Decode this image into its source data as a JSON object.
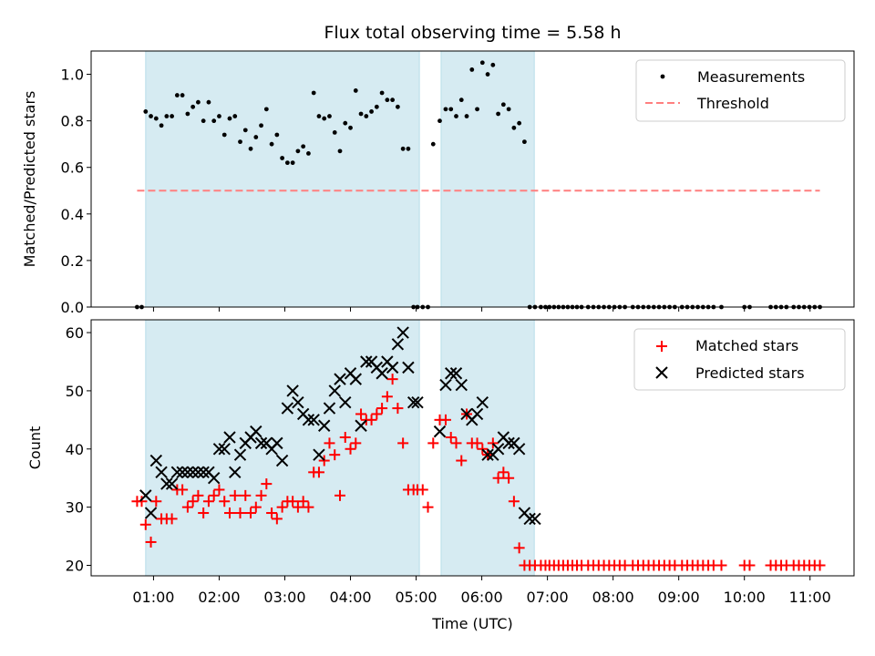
{
  "chart_data": [
    {
      "type": "scatter",
      "title": "Flux total observing time = 5.58 h",
      "xlabel": "",
      "ylabel": "Matched/Predicted stars",
      "xlim": [
        0.05,
        11.67
      ],
      "ylim": [
        0.0,
        1.1
      ],
      "yticks": [
        0.0,
        0.2,
        0.4,
        0.6,
        0.8,
        1.0
      ],
      "ytick_labels": [
        "0.0",
        "0.2",
        "0.4",
        "0.6",
        "0.8",
        "1.0"
      ],
      "shaded_ranges": [
        [
          0.88,
          5.05
        ],
        [
          5.38,
          6.8
        ]
      ],
      "threshold": {
        "name": "Threshold",
        "value": 0.5,
        "x_start": 0.75,
        "x_end": 11.15,
        "color": "#ff7f7f"
      },
      "legend": [
        "Measurements",
        "Threshold"
      ],
      "legend_position": "top-right",
      "series": [
        {
          "name": "Measurements",
          "color": "#000000",
          "x": [
            0.75,
            0.82,
            0.88,
            0.96,
            1.04,
            1.12,
            1.2,
            1.28,
            1.36,
            1.44,
            1.52,
            1.6,
            1.68,
            1.76,
            1.84,
            1.92,
            2.0,
            2.08,
            2.16,
            2.24,
            2.32,
            2.4,
            2.48,
            2.56,
            2.64,
            2.72,
            2.8,
            2.88,
            2.96,
            3.04,
            3.12,
            3.2,
            3.28,
            3.36,
            3.44,
            3.52,
            3.6,
            3.68,
            3.76,
            3.84,
            3.92,
            4.0,
            4.08,
            4.16,
            4.24,
            4.32,
            4.4,
            4.48,
            4.56,
            4.64,
            4.72,
            4.8,
            4.88,
            4.96,
            5.02,
            5.1,
            5.18,
            5.26,
            5.36,
            5.45,
            5.53,
            5.61,
            5.69,
            5.77,
            5.85,
            5.93,
            6.01,
            6.09,
            6.17,
            6.25,
            6.33,
            6.41,
            6.49,
            6.57,
            6.65,
            6.73,
            6.81,
            6.9,
            6.97,
            7.03,
            7.1,
            7.17,
            7.24,
            7.31,
            7.38,
            7.45,
            7.52,
            7.62,
            7.7,
            7.78,
            7.86,
            7.94,
            8.02,
            8.1,
            8.18,
            8.3,
            8.38,
            8.46,
            8.54,
            8.62,
            8.7,
            8.78,
            8.86,
            8.94,
            9.05,
            9.13,
            9.21,
            9.29,
            9.37,
            9.45,
            9.53,
            9.65,
            10.0,
            10.08,
            10.4,
            10.48,
            10.56,
            10.64,
            10.75,
            10.83,
            10.91,
            10.99,
            11.07,
            11.15
          ],
          "y": [
            0.0,
            0.0,
            0.84,
            0.82,
            0.81,
            0.78,
            0.82,
            0.82,
            0.91,
            0.91,
            0.83,
            0.86,
            0.88,
            0.8,
            0.88,
            0.8,
            0.82,
            0.74,
            0.81,
            0.82,
            0.71,
            0.76,
            0.68,
            0.73,
            0.78,
            0.85,
            0.7,
            0.74,
            0.64,
            0.62,
            0.62,
            0.67,
            0.69,
            0.66,
            0.92,
            0.82,
            0.81,
            0.82,
            0.75,
            0.67,
            0.79,
            0.77,
            0.93,
            0.83,
            0.82,
            0.84,
            0.86,
            0.92,
            0.89,
            0.89,
            0.86,
            0.68,
            0.68,
            0.0,
            0.0,
            0.0,
            0.0,
            0.7,
            0.8,
            0.85,
            0.85,
            0.82,
            0.89,
            0.82,
            1.02,
            0.85,
            1.05,
            1.0,
            1.04,
            0.83,
            0.87,
            0.85,
            0.77,
            0.79,
            0.71,
            0.0,
            0.0,
            0.0,
            0.0,
            0.0,
            0.0,
            0.0,
            0.0,
            0.0,
            0.0,
            0.0,
            0.0,
            0.0,
            0.0,
            0.0,
            0.0,
            0.0,
            0.0,
            0.0,
            0.0,
            0.0,
            0.0,
            0.0,
            0.0,
            0.0,
            0.0,
            0.0,
            0.0,
            0.0,
            0.0,
            0.0,
            0.0,
            0.0,
            0.0,
            0.0,
            0.0,
            0.0,
            0.0,
            0.0,
            0.0,
            0.0,
            0.0,
            0.0,
            0.0,
            0.0,
            0.0,
            0.0,
            0.0,
            0.0
          ]
        }
      ]
    },
    {
      "type": "scatter",
      "title": "",
      "xlabel": "Time (UTC)",
      "ylabel": "Count",
      "xlim": [
        0.05,
        11.67
      ],
      "ylim": [
        18.2,
        62.2
      ],
      "xticks": [
        1,
        2,
        3,
        4,
        5,
        6,
        7,
        8,
        9,
        10,
        11
      ],
      "xtick_labels": [
        "01:00",
        "02:00",
        "03:00",
        "04:00",
        "05:00",
        "06:00",
        "07:00",
        "08:00",
        "09:00",
        "10:00",
        "11:00"
      ],
      "yticks": [
        20,
        30,
        40,
        50,
        60
      ],
      "ytick_labels": [
        "20",
        "30",
        "40",
        "50",
        "60"
      ],
      "shaded_ranges": [
        [
          0.88,
          5.05
        ],
        [
          5.38,
          6.8
        ]
      ],
      "legend": [
        "Matched stars",
        "Predicted stars"
      ],
      "legend_position": "top-right",
      "series": [
        {
          "name": "Matched stars",
          "marker": "+",
          "color": "#ff0000",
          "x": [
            0.75,
            0.82,
            0.88,
            0.96,
            1.04,
            1.12,
            1.2,
            1.28,
            1.36,
            1.44,
            1.52,
            1.6,
            1.68,
            1.76,
            1.84,
            1.92,
            2.0,
            2.08,
            2.16,
            2.24,
            2.32,
            2.4,
            2.48,
            2.56,
            2.64,
            2.72,
            2.8,
            2.88,
            2.96,
            3.04,
            3.12,
            3.2,
            3.28,
            3.36,
            3.44,
            3.52,
            3.6,
            3.68,
            3.76,
            3.84,
            3.92,
            4.0,
            4.08,
            4.16,
            4.24,
            4.32,
            4.4,
            4.48,
            4.56,
            4.64,
            4.72,
            4.8,
            4.88,
            4.96,
            5.02,
            5.1,
            5.18,
            5.26,
            5.36,
            5.45,
            5.53,
            5.61,
            5.69,
            5.77,
            5.85,
            5.93,
            6.01,
            6.09,
            6.17,
            6.25,
            6.33,
            6.41,
            6.49,
            6.57,
            6.65,
            6.73,
            6.81,
            6.9,
            6.97,
            7.03,
            7.1,
            7.17,
            7.24,
            7.31,
            7.38,
            7.45,
            7.52,
            7.62,
            7.7,
            7.78,
            7.86,
            7.94,
            8.02,
            8.1,
            8.18,
            8.3,
            8.38,
            8.46,
            8.54,
            8.62,
            8.7,
            8.78,
            8.86,
            8.94,
            9.05,
            9.13,
            9.21,
            9.29,
            9.37,
            9.45,
            9.53,
            9.65,
            10.0,
            10.08,
            10.4,
            10.48,
            10.56,
            10.64,
            10.75,
            10.83,
            10.91,
            10.99,
            11.07,
            11.15
          ],
          "y": [
            31,
            31,
            27,
            24,
            31,
            28,
            28,
            28,
            33,
            33,
            30,
            31,
            32,
            29,
            31,
            32,
            33,
            31,
            29,
            32,
            29,
            32,
            29,
            30,
            32,
            34,
            29,
            28,
            30,
            31,
            31,
            30,
            31,
            30,
            36,
            36,
            38,
            41,
            39,
            32,
            42,
            40,
            41,
            46,
            45,
            45,
            46,
            47,
            49,
            52,
            47,
            41,
            33,
            33,
            33,
            33,
            30,
            41,
            45,
            45,
            42,
            41,
            38,
            46,
            41,
            41,
            40,
            39,
            41,
            35,
            36,
            35,
            31,
            23,
            20,
            20,
            20,
            20,
            20,
            20,
            20,
            20,
            20,
            20,
            20,
            20,
            20,
            20,
            20,
            20,
            20,
            20,
            20,
            20,
            20,
            20,
            20,
            20,
            20,
            20,
            20,
            20,
            20,
            20,
            20,
            20,
            20,
            20,
            20,
            20,
            20,
            20,
            20,
            20,
            20,
            20,
            20,
            20,
            20,
            20,
            20,
            20,
            20,
            20
          ]
        },
        {
          "name": "Predicted stars",
          "marker": "x",
          "color": "#000000",
          "x": [
            0.88,
            0.96,
            1.04,
            1.12,
            1.2,
            1.28,
            1.36,
            1.44,
            1.52,
            1.6,
            1.68,
            1.76,
            1.84,
            1.92,
            2.0,
            2.08,
            2.16,
            2.24,
            2.32,
            2.4,
            2.48,
            2.56,
            2.64,
            2.72,
            2.8,
            2.88,
            2.96,
            3.04,
            3.12,
            3.2,
            3.28,
            3.36,
            3.44,
            3.52,
            3.6,
            3.68,
            3.76,
            3.84,
            3.92,
            4.0,
            4.08,
            4.16,
            4.24,
            4.32,
            4.4,
            4.48,
            4.56,
            4.64,
            4.72,
            4.8,
            4.88,
            4.96,
            5.02,
            5.36,
            5.45,
            5.53,
            5.61,
            5.69,
            5.77,
            5.85,
            5.93,
            6.01,
            6.09,
            6.17,
            6.25,
            6.33,
            6.41,
            6.49,
            6.57,
            6.65,
            6.73,
            6.81
          ],
          "y": [
            32,
            29,
            38,
            36,
            34,
            34,
            36,
            36,
            36,
            36,
            36,
            36,
            36,
            35,
            40,
            40,
            42,
            36,
            39,
            41,
            42,
            43,
            41,
            41,
            40,
            41,
            38,
            47,
            50,
            48,
            46,
            45,
            45,
            39,
            44,
            47,
            50,
            52,
            48,
            53,
            52,
            44,
            55,
            55,
            54,
            53,
            55,
            54,
            58,
            60,
            54,
            48,
            48,
            43,
            51,
            53,
            53,
            51,
            46,
            45,
            46,
            48,
            39,
            39,
            40,
            42,
            41,
            41,
            40,
            29,
            28,
            28
          ]
        }
      ]
    }
  ]
}
